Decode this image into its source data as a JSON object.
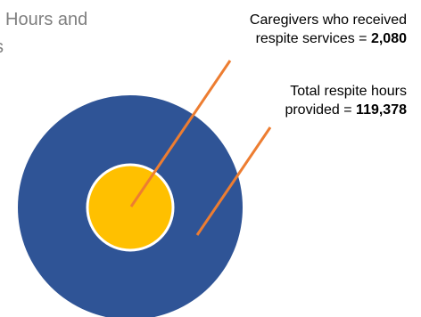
{
  "title": {
    "line1": "Hours and",
    "line2": "s"
  },
  "colors": {
    "outer_circle": "#2f5496",
    "inner_circle": "#ffc000",
    "inner_border": "#ffffff",
    "leader_line": "#ed7d31",
    "title_text": "#7f7f7f"
  },
  "chart_data": {
    "type": "nested-circle",
    "title": "Hours and s",
    "series": [
      {
        "name": "",
        "label_prefix": "Total respite hours provided = ",
        "value": 119378,
        "value_label": "119,378"
      },
      {
        "name": "",
        "label_prefix": "Caregivers who received respite services = ",
        "value": 2080,
        "value_label": "2,080"
      }
    ]
  },
  "callouts": {
    "caregivers": {
      "line1": "Caregivers who received",
      "line2_prefix": "respite services = ",
      "value": "2,080"
    },
    "hours": {
      "line1": "Total respite hours",
      "line2_prefix": "provided = ",
      "value": "119,378"
    }
  }
}
